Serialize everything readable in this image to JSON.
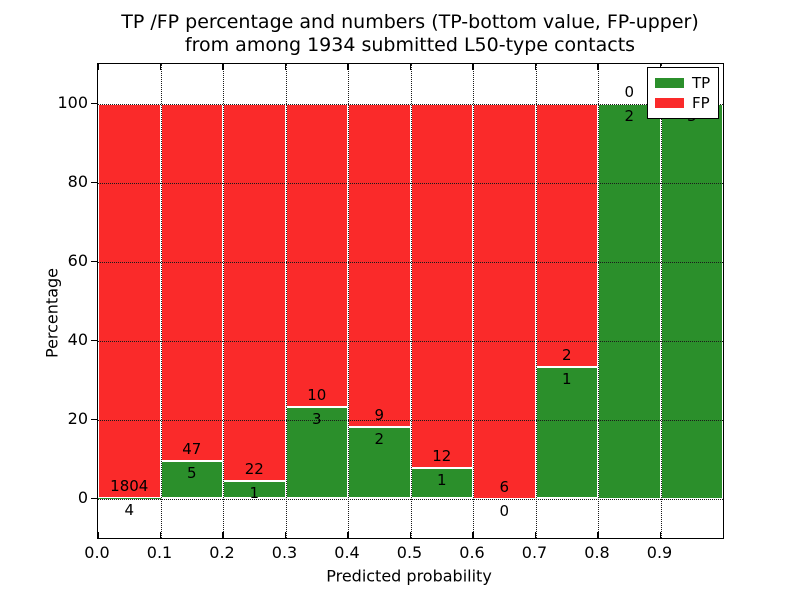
{
  "title": {
    "line1": "TP /FP percentage and numbers (TP-bottom value, FP-upper)",
    "line2": "from among 1934 submitted L50-type contacts"
  },
  "axes": {
    "xlabel": "Predicted probability",
    "ylabel": "Percentage"
  },
  "legend": {
    "position": "upper right",
    "entries": [
      {
        "label": "TP",
        "color": "#2b8f2b"
      },
      {
        "label": "FP",
        "color": "#fa2a2a"
      }
    ]
  },
  "chart_data": {
    "type": "bar",
    "stacked": true,
    "normalized_to_percent": true,
    "title": "TP /FP percentage and numbers (TP-bottom value, FP-upper) from among 1934 submitted L50-type contacts",
    "xlabel": "Predicted probability",
    "ylabel": "Percentage",
    "total_contacts": 1934,
    "bin_edges": [
      0.0,
      0.1,
      0.2,
      0.3,
      0.4,
      0.5,
      0.6,
      0.7,
      0.8,
      0.9,
      1.0
    ],
    "x_tick_labels": [
      "0.0",
      "0.1",
      "0.2",
      "0.3",
      "0.4",
      "0.5",
      "0.6",
      "0.7",
      "0.8",
      "0.9"
    ],
    "y_ticks": [
      0,
      20,
      40,
      60,
      80,
      100
    ],
    "ylim": [
      -10,
      110
    ],
    "xlim": [
      0.0,
      1.0
    ],
    "grid": "dotted",
    "legend_position": "upper right",
    "series": [
      {
        "name": "TP",
        "color": "#2b8f2b",
        "stack_position": "bottom",
        "values": [
          4,
          5,
          1,
          3,
          2,
          1,
          0,
          1,
          2,
          3
        ]
      },
      {
        "name": "FP",
        "color": "#fa2a2a",
        "stack_position": "top",
        "values": [
          1804,
          47,
          22,
          10,
          9,
          12,
          6,
          2,
          0,
          0
        ]
      }
    ],
    "tp_percent": [
      0.22,
      9.62,
      4.35,
      23.08,
      18.18,
      7.69,
      0.0,
      33.33,
      100.0,
      100.0
    ]
  }
}
